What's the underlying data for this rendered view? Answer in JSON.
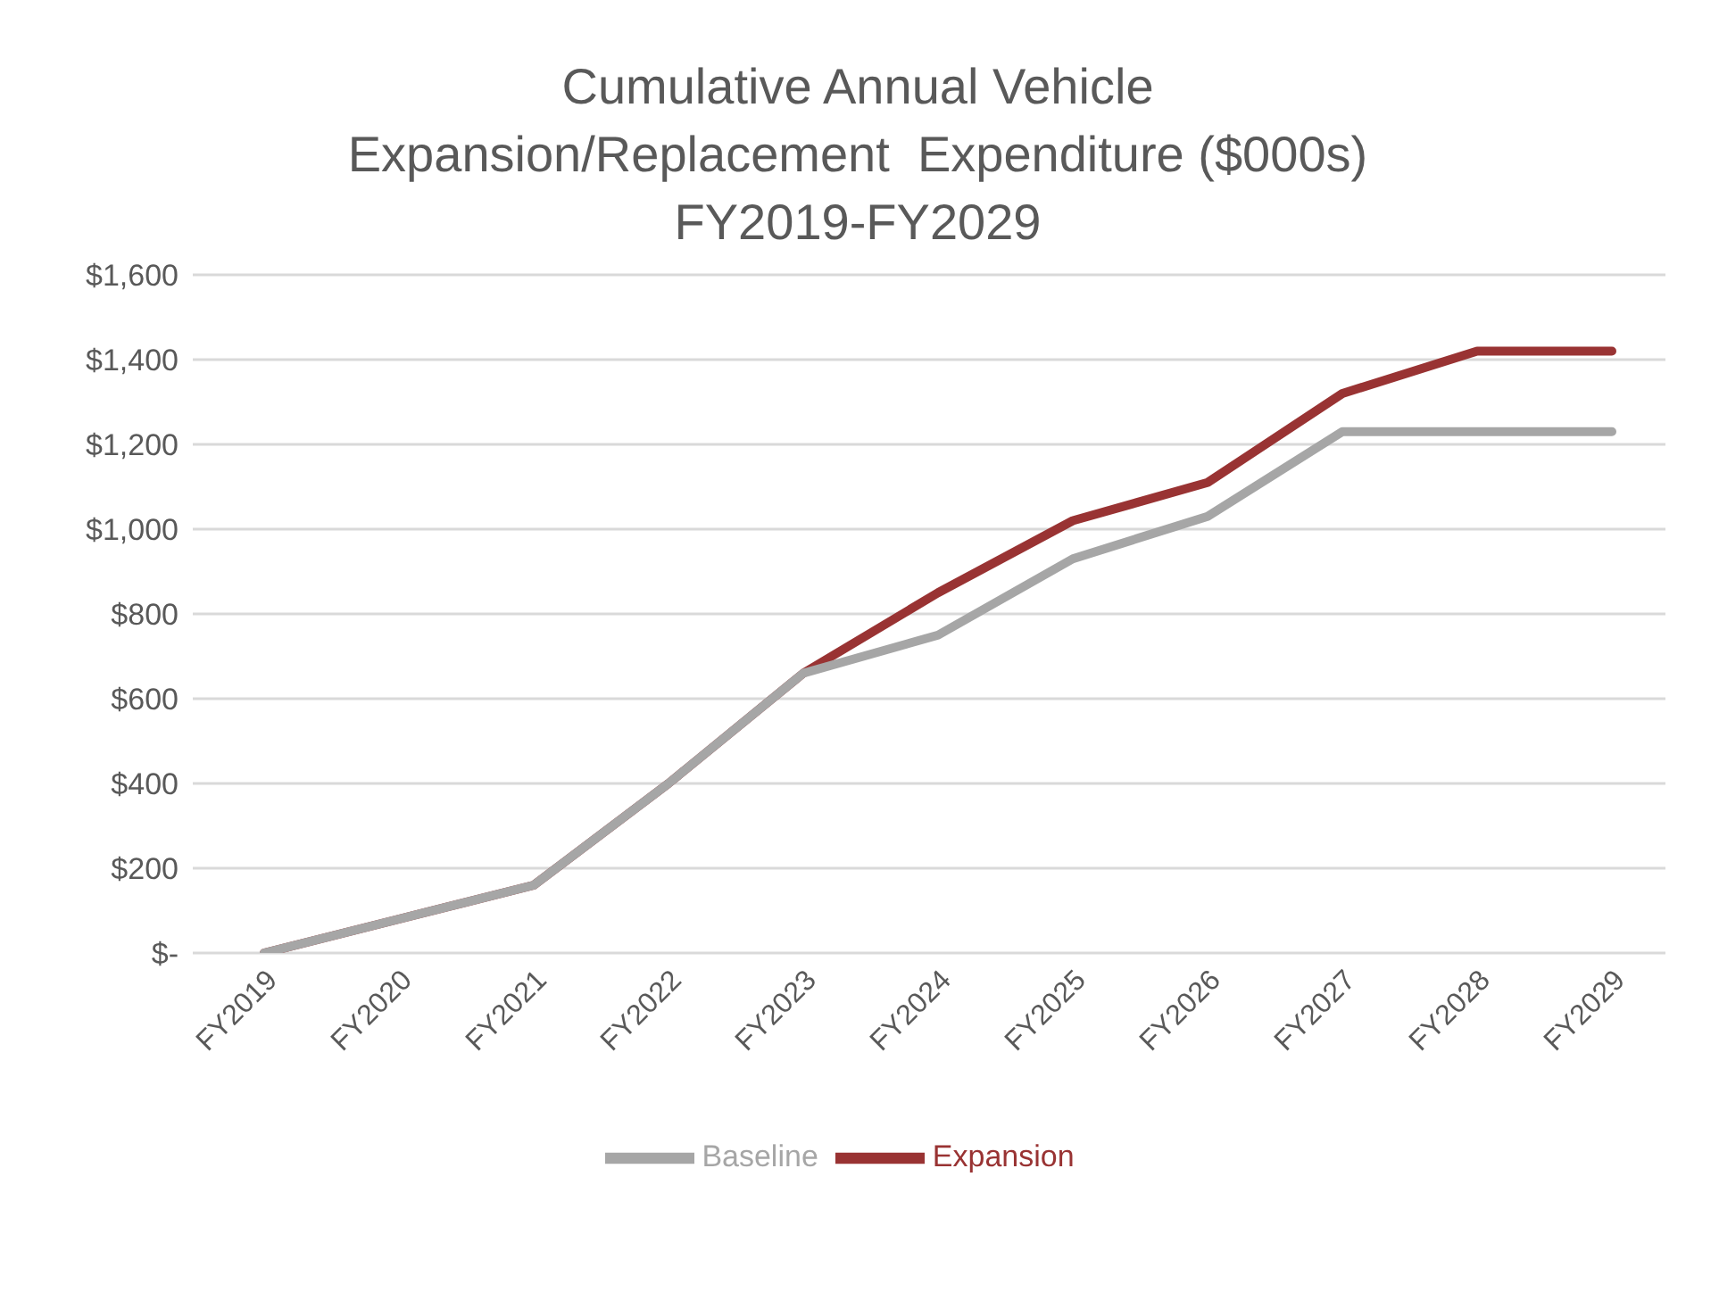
{
  "chart_data": {
    "type": "line",
    "title": "Cumulative Annual Vehicle\nExpansion/Replacement  Expenditure ($000s)\nFY2019-FY2029",
    "categories": [
      "FY2019",
      "FY2020",
      "FY2021",
      "FY2022",
      "FY2023",
      "FY2024",
      "FY2025",
      "FY2026",
      "FY2027",
      "FY2028",
      "FY2029"
    ],
    "series": [
      {
        "name": "Expansion",
        "color": "#993333",
        "values": [
          0,
          80,
          160,
          400,
          660,
          850,
          1020,
          1110,
          1320,
          1420,
          1420
        ]
      },
      {
        "name": "Baseline",
        "color": "#a6a6a6",
        "values": [
          0,
          80,
          160,
          400,
          660,
          750,
          930,
          1030,
          1230,
          1230,
          1230
        ]
      }
    ],
    "ylim": [
      0,
      1600
    ],
    "yticks": [
      {
        "value": 0,
        "label": "$-"
      },
      {
        "value": 200,
        "label": "$200"
      },
      {
        "value": 400,
        "label": "$400"
      },
      {
        "value": 600,
        "label": "$600"
      },
      {
        "value": 800,
        "label": "$800"
      },
      {
        "value": 1000,
        "label": "$1,000"
      },
      {
        "value": 1200,
        "label": "$1,200"
      },
      {
        "value": 1400,
        "label": "$1,400"
      },
      {
        "value": 1600,
        "label": "$1,600"
      }
    ],
    "grid": "y",
    "legend": "bottom",
    "marker": "none",
    "line_style": "solid"
  }
}
